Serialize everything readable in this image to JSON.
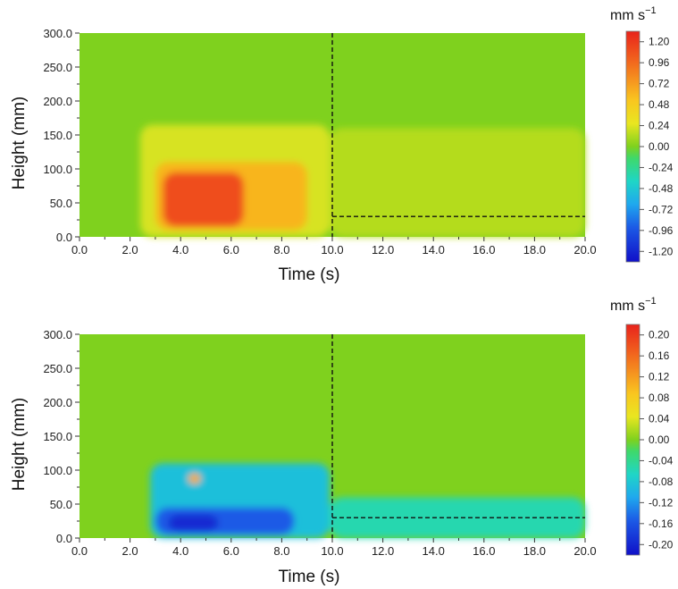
{
  "chart_data": [
    {
      "type": "heatmap",
      "title": "",
      "xlabel": "Time (s)",
      "ylabel": "Height (mm)",
      "xlim": [
        0,
        20
      ],
      "ylim": [
        0,
        300
      ],
      "x_ticks": [
        "0.0",
        "2.0",
        "4.0",
        "6.0",
        "8.0",
        "10.0",
        "12.0",
        "14.0",
        "16.0",
        "18.0",
        "20.0"
      ],
      "y_ticks": [
        "0.0",
        "50.0",
        "100.0",
        "150.0",
        "200.0",
        "250.0",
        "300.0"
      ],
      "colorbar": {
        "unit": "mm s",
        "unit_exp": "−1",
        "min": -1.2,
        "max": 1.2,
        "ticks": [
          "1.20",
          "0.96",
          "0.72",
          "0.48",
          "0.24",
          "0.00",
          "-0.24",
          "-0.48",
          "-0.72",
          "-0.96",
          "-1.20"
        ]
      },
      "reference_lines": {
        "vertical_x": 10,
        "horizontal_y": 30
      },
      "regions": [
        {
          "x_range": [
            2.4,
            9.9
          ],
          "y_range": [
            0,
            165
          ],
          "value": 0.2
        },
        {
          "x_range": [
            9.9,
            20
          ],
          "y_range": [
            0,
            160
          ],
          "value": 0.12
        },
        {
          "x_range": [
            3.0,
            9.0
          ],
          "y_range": [
            10,
            110
          ],
          "value": 0.55
        },
        {
          "x_range": [
            3.3,
            6.5
          ],
          "y_range": [
            15,
            95
          ],
          "value": 1.0
        }
      ]
    },
    {
      "type": "heatmap",
      "title": "",
      "xlabel": "Time (s)",
      "ylabel": "Height (mm)",
      "xlim": [
        0,
        20
      ],
      "ylim": [
        0,
        300
      ],
      "x_ticks": [
        "0.0",
        "2.0",
        "4.0",
        "6.0",
        "8.0",
        "10.0",
        "12.0",
        "14.0",
        "16.0",
        "18.0",
        "20.0"
      ],
      "y_ticks": [
        "0.0",
        "50.0",
        "100.0",
        "150.0",
        "200.0",
        "250.0",
        "300.0"
      ],
      "colorbar": {
        "unit": "mm s",
        "unit_exp": "−1",
        "min": -0.2,
        "max": 0.2,
        "ticks": [
          "0.20",
          "0.16",
          "0.12",
          "0.08",
          "0.04",
          "0.00",
          "-0.04",
          "-0.08",
          "-0.12",
          "-0.16",
          "-0.20"
        ]
      },
      "reference_lines": {
        "vertical_x": 10,
        "horizontal_y": 30
      },
      "regions": [
        {
          "x_range": [
            2.8,
            9.9
          ],
          "y_range": [
            0,
            110
          ],
          "value": -0.08
        },
        {
          "x_range": [
            9.9,
            20
          ],
          "y_range": [
            0,
            60
          ],
          "value": -0.05
        },
        {
          "x_range": [
            3.0,
            8.5
          ],
          "y_range": [
            5,
            45
          ],
          "value": -0.14
        },
        {
          "x_range": [
            3.5,
            5.5
          ],
          "y_range": [
            10,
            35
          ],
          "value": -0.18
        },
        {
          "x_range": [
            4.3,
            4.8
          ],
          "y_range": [
            80,
            95
          ],
          "value": 0.1
        }
      ]
    }
  ]
}
